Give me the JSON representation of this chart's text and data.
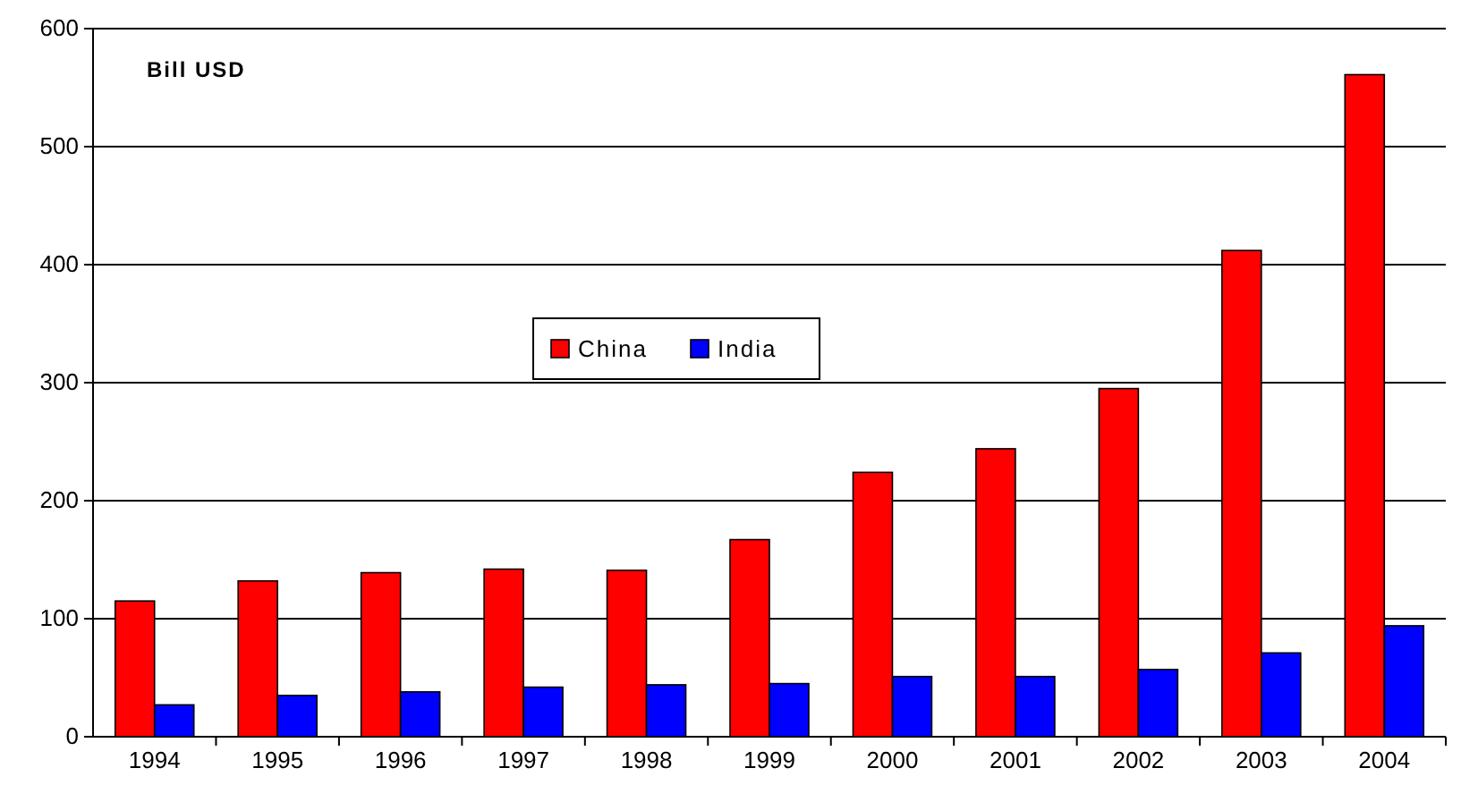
{
  "chart_data": {
    "type": "bar",
    "ylabel": "Bill USD",
    "categories": [
      "1994",
      "1995",
      "1996",
      "1997",
      "1998",
      "1999",
      "2000",
      "2001",
      "2002",
      "2003",
      "2004"
    ],
    "series": [
      {
        "name": "China",
        "color": "#ff0000",
        "values": [
          115,
          132,
          139,
          142,
          141,
          167,
          224,
          244,
          295,
          412,
          561
        ]
      },
      {
        "name": "India",
        "color": "#0000ff",
        "values": [
          27,
          35,
          38,
          42,
          44,
          45,
          51,
          51,
          57,
          71,
          94
        ]
      }
    ],
    "ylim": [
      0,
      600
    ],
    "yticks": [
      0,
      100,
      200,
      300,
      400,
      500,
      600
    ],
    "grid": "y",
    "legend": "center"
  }
}
